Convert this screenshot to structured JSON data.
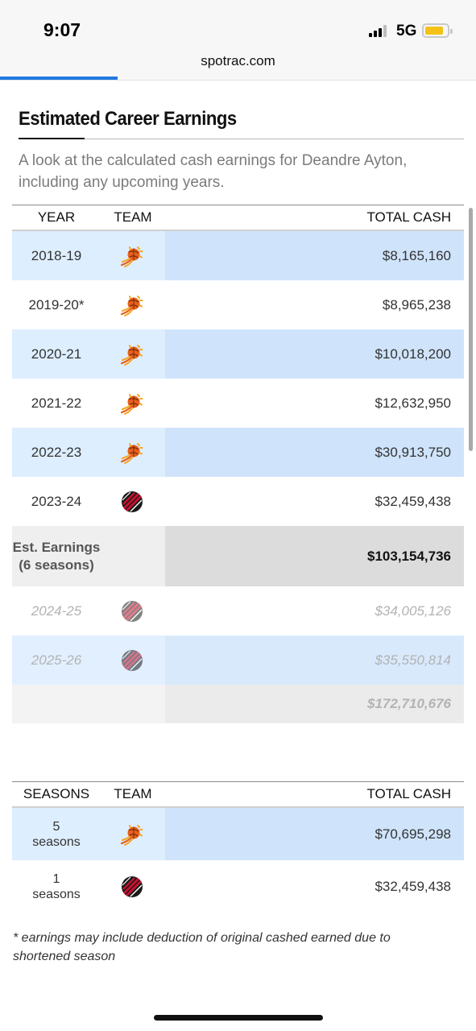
{
  "status_bar": {
    "time": "9:07",
    "network": "5G"
  },
  "browser": {
    "url": "spotrac.com"
  },
  "section": {
    "title": "Estimated Career Earnings",
    "description": "A look at the calculated cash earnings for Deandre Ayton, including any upcoming years."
  },
  "earnings_table": {
    "headers": {
      "year": "YEAR",
      "team": "TEAM",
      "total_cash": "TOTAL CASH"
    },
    "rows": [
      {
        "year": "2018-19",
        "team_icon": "phoenix-suns-logo",
        "total_cash": "$8,165,160"
      },
      {
        "year": "2019-20*",
        "team_icon": "phoenix-suns-logo",
        "total_cash": "$8,965,238"
      },
      {
        "year": "2020-21",
        "team_icon": "phoenix-suns-logo",
        "total_cash": "$10,018,200"
      },
      {
        "year": "2021-22",
        "team_icon": "phoenix-suns-logo",
        "total_cash": "$12,632,950"
      },
      {
        "year": "2022-23",
        "team_icon": "phoenix-suns-logo",
        "total_cash": "$30,913,750"
      },
      {
        "year": "2023-24",
        "team_icon": "portland-trail-blazers-logo",
        "total_cash": "$32,459,438"
      }
    ],
    "estimated": {
      "label_line1": "Est. Earnings",
      "label_line2": "(6 seasons)",
      "total_cash": "$103,154,736"
    },
    "future_rows": [
      {
        "year": "2024-25",
        "team_icon": "portland-trail-blazers-logo",
        "total_cash": "$34,005,126"
      },
      {
        "year": "2025-26",
        "team_icon": "portland-trail-blazers-logo",
        "total_cash": "$35,550,814"
      }
    ],
    "projected_total": "$172,710,676"
  },
  "team_table": {
    "headers": {
      "seasons": "SEASONS",
      "team": "TEAM",
      "total_cash": "TOTAL CASH"
    },
    "rows": [
      {
        "count": "5",
        "unit": "seasons",
        "team_icon": "phoenix-suns-logo",
        "total_cash": "$70,695,298"
      },
      {
        "count": "1",
        "unit": "seasons",
        "team_icon": "portland-trail-blazers-logo",
        "total_cash": "$32,459,438"
      }
    ]
  },
  "footnote": "* earnings may include deduction of original cashed earned due to shortened season",
  "colors": {
    "row_highlight_left": "#ddeeff",
    "row_highlight_right": "#cfe4fb",
    "suns_orange": "#e56020",
    "blazers_red": "#c8102e",
    "progress_blue": "#1f7ae0"
  }
}
